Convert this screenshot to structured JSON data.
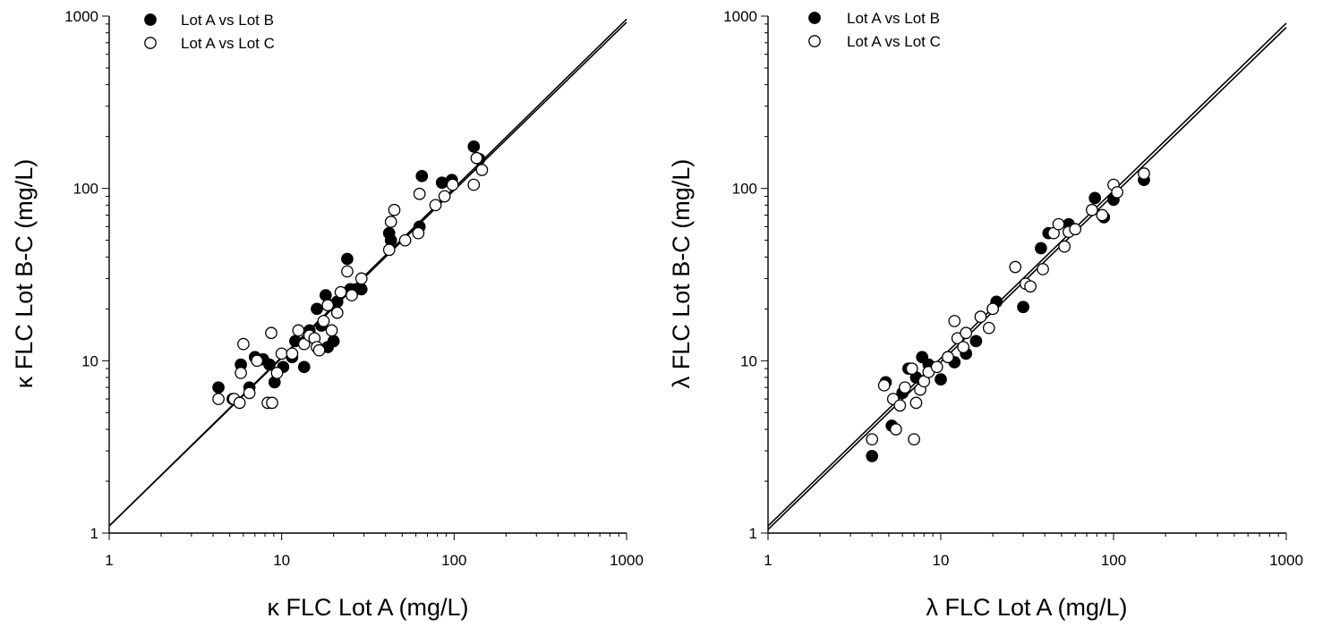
{
  "chart_data": [
    {
      "type": "scatter",
      "xscale": "log",
      "yscale": "log",
      "xlim": [
        1,
        1000
      ],
      "ylim": [
        1,
        1000
      ],
      "xticks": [
        "1",
        "10",
        "100",
        "1000"
      ],
      "yticks": [
        "1",
        "10",
        "100",
        "1000"
      ],
      "xlabel": "κ FLC Lot A (mg/L)",
      "ylabel": "κ FLC Lot B-C (mg/L)",
      "grid": false,
      "legend_position": "top-left",
      "series": [
        {
          "name": "Lot A vs Lot B",
          "marker": "filled-circle",
          "color": "#000000",
          "x": [
            4.3,
            5.2,
            5.8,
            6.5,
            7,
            7.8,
            8.5,
            9.1,
            10.2,
            11.5,
            12,
            13.5,
            14.5,
            16,
            17,
            18,
            18.5,
            19,
            20,
            21,
            24,
            25,
            27,
            29,
            42,
            43,
            63,
            65,
            85,
            97,
            130,
            140
          ],
          "y": [
            7,
            6,
            9.5,
            7,
            10.5,
            10.2,
            9.5,
            7.5,
            9.2,
            10.5,
            13,
            9.2,
            15,
            20,
            16,
            24,
            12,
            21,
            13,
            22,
            39,
            26,
            26,
            26,
            55,
            50,
            60,
            118,
            108,
            112,
            175,
            148
          ]
        },
        {
          "name": "Lot A vs Lot C",
          "marker": "open-circle",
          "color": "#ffffff",
          "x": [
            4.3,
            5.3,
            5.7,
            5.8,
            6,
            6.5,
            7.2,
            8.3,
            8.8,
            8.7,
            9.4,
            10,
            11.5,
            12.5,
            13.5,
            14.5,
            15.5,
            16,
            16.5,
            17.5,
            18.5,
            19.5,
            21,
            22,
            24,
            25.5,
            29,
            42,
            43,
            45,
            52,
            62,
            63,
            78,
            88,
            98,
            130,
            135,
            145
          ],
          "y": [
            6,
            6,
            5.7,
            8.5,
            12.5,
            6.5,
            10,
            5.7,
            5.7,
            14.5,
            8.5,
            11,
            11,
            15,
            12.5,
            14,
            13.5,
            12,
            11.5,
            17,
            21,
            15,
            19,
            25,
            33,
            24,
            30,
            44,
            64,
            75,
            50,
            55,
            93,
            80,
            90,
            105,
            105,
            150,
            128
          ]
        }
      ],
      "regression_lines": [
        {
          "x": [
            1,
            1000
          ],
          "y": [
            1.1,
            920
          ]
        },
        {
          "x": [
            1,
            1000
          ],
          "y": [
            1.1,
            960
          ]
        }
      ]
    },
    {
      "type": "scatter",
      "xscale": "log",
      "yscale": "log",
      "xlim": [
        1,
        1000
      ],
      "ylim": [
        1,
        1000
      ],
      "xticks": [
        "1",
        "10",
        "100",
        "1000"
      ],
      "yticks": [
        "1",
        "10",
        "100",
        "1000"
      ],
      "xlabel": "λ FLC Lot A (mg/L)",
      "ylabel": "λ FLC Lot B-C (mg/L)",
      "grid": false,
      "legend_position": "top-left",
      "series": [
        {
          "name": "Lot A  vs Lot B",
          "marker": "filled-circle",
          "color": "#000000",
          "x": [
            4,
            4.8,
            5.2,
            6,
            6.5,
            7.2,
            7.8,
            8.5,
            10,
            12,
            14,
            16,
            20,
            21,
            30,
            38,
            42,
            55,
            78,
            88,
            100,
            150
          ],
          "y": [
            2.8,
            7.5,
            4.2,
            6.5,
            9,
            8,
            10.5,
            9.5,
            7.8,
            9.8,
            11,
            13,
            20,
            22,
            20.5,
            45,
            55,
            62,
            88,
            68,
            86,
            112
          ],
          "note": "points approximate"
        },
        {
          "name": "Lot A vs Lot C",
          "marker": "open-circle",
          "color": "#ffffff",
          "x": [
            4,
            4.7,
            5.3,
            5.5,
            5.8,
            6.2,
            6.8,
            7,
            7.2,
            7.6,
            8,
            8.5,
            9.5,
            11,
            12,
            12.5,
            13.5,
            14,
            17,
            19,
            20,
            27,
            31,
            33,
            39,
            45,
            48,
            52,
            55,
            60,
            75,
            86,
            100,
            105,
            150
          ],
          "y": [
            3.5,
            7.2,
            6,
            4,
            5.5,
            7,
            9,
            3.5,
            5.7,
            6.8,
            7.6,
            8.6,
            9.2,
            10.5,
            17,
            13.5,
            12,
            14.5,
            18,
            15.5,
            20,
            35,
            28,
            27,
            34,
            55,
            62,
            46,
            56,
            58,
            75,
            70,
            105,
            95,
            122
          ]
        }
      ],
      "regression_lines": [
        {
          "x": [
            1,
            1000
          ],
          "y": [
            1.05,
            860
          ]
        },
        {
          "x": [
            1,
            1000
          ],
          "y": [
            1.1,
            910
          ]
        }
      ]
    }
  ]
}
